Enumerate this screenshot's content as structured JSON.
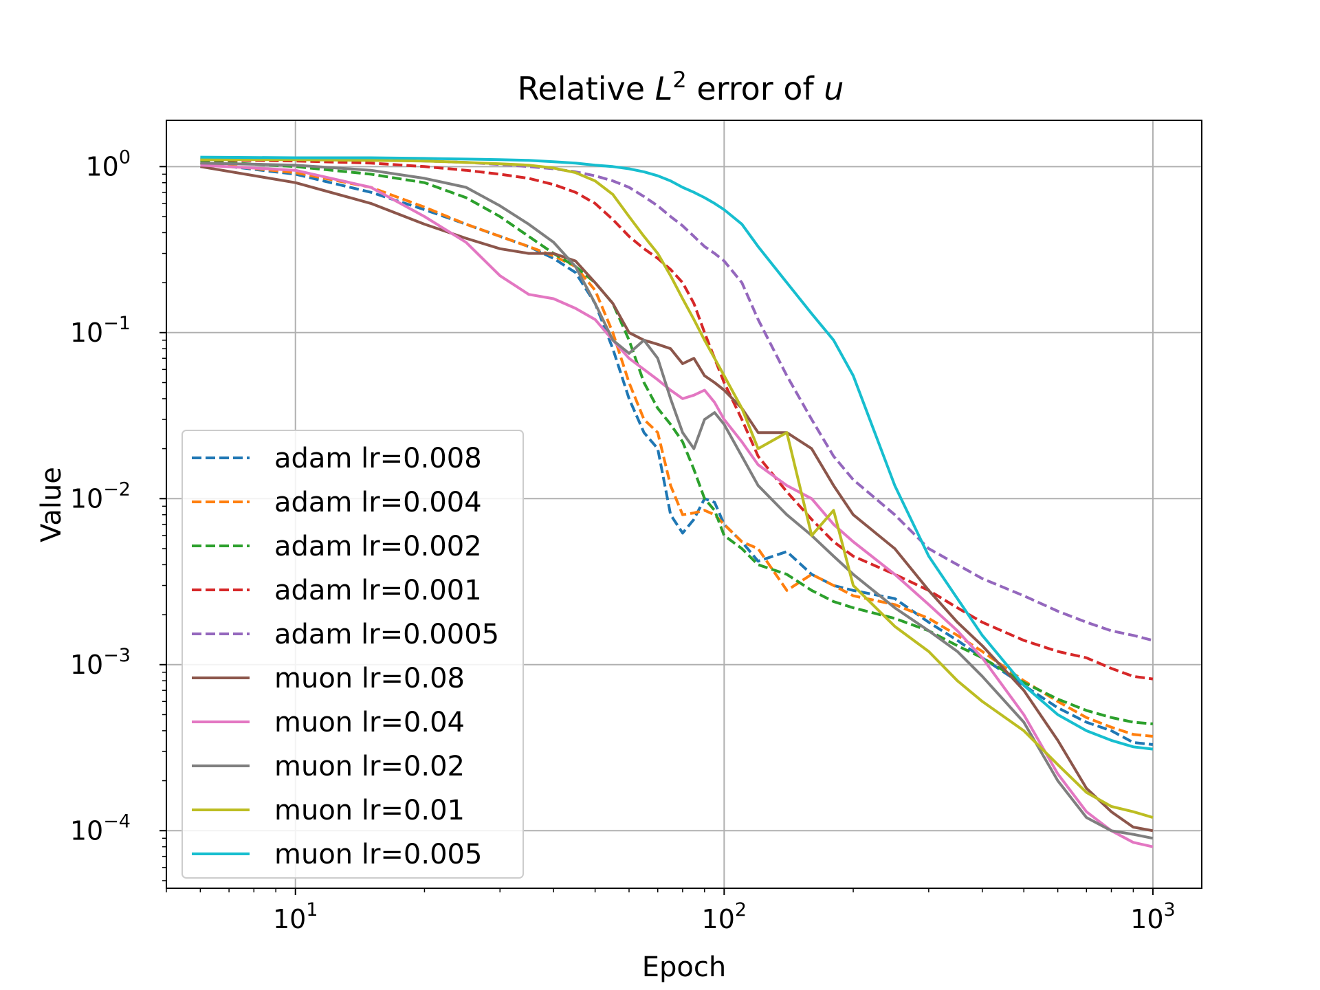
{
  "chart_data": {
    "type": "line",
    "title": "Relative L² error of u",
    "title_parts": {
      "prefix": "Relative ",
      "L": "L",
      "sup": "2",
      "mid": " error of ",
      "var": "u"
    },
    "xlabel": "Epoch",
    "ylabel": "Value",
    "x_scale": "log",
    "y_scale": "log",
    "xlim": [
      5,
      1300
    ],
    "ylim": [
      4.5e-05,
      1.9
    ],
    "x_ticks": [
      {
        "value": 10,
        "base": "10",
        "exp": "1"
      },
      {
        "value": 100,
        "base": "10",
        "exp": "2"
      },
      {
        "value": 1000,
        "base": "10",
        "exp": "3"
      }
    ],
    "y_ticks": [
      {
        "value": 1,
        "base": "10",
        "exp": "0"
      },
      {
        "value": 0.1,
        "base": "10",
        "exp": "−1"
      },
      {
        "value": 0.01,
        "base": "10",
        "exp": "−2"
      },
      {
        "value": 0.001,
        "base": "10",
        "exp": "−3"
      },
      {
        "value": 0.0001,
        "base": "10",
        "exp": "−4"
      }
    ],
    "grid": true,
    "legend_position": "lower-left",
    "series": [
      {
        "name": "adam lr=0.008",
        "color": "#1f77b4",
        "dashed": true,
        "x": [
          6,
          10,
          15,
          20,
          25,
          30,
          35,
          40,
          45,
          50,
          55,
          60,
          65,
          70,
          75,
          80,
          85,
          90,
          95,
          100,
          110,
          120,
          140,
          160,
          180,
          200,
          250,
          300,
          350,
          400,
          500,
          600,
          700,
          800,
          900,
          1000
        ],
        "y": [
          1.05,
          0.9,
          0.7,
          0.55,
          0.45,
          0.38,
          0.33,
          0.28,
          0.23,
          0.15,
          0.08,
          0.04,
          0.025,
          0.02,
          0.008,
          0.0062,
          0.0075,
          0.01,
          0.0095,
          0.007,
          0.0055,
          0.0042,
          0.0048,
          0.0035,
          0.003,
          0.0028,
          0.0025,
          0.0018,
          0.0014,
          0.0011,
          0.00075,
          0.00055,
          0.00045,
          0.0004,
          0.00034,
          0.00033
        ]
      },
      {
        "name": "adam lr=0.004",
        "color": "#ff7f0e",
        "dashed": true,
        "x": [
          6,
          10,
          15,
          20,
          25,
          30,
          35,
          40,
          45,
          50,
          55,
          60,
          65,
          70,
          75,
          80,
          85,
          90,
          95,
          100,
          110,
          120,
          140,
          160,
          180,
          200,
          250,
          300,
          350,
          400,
          500,
          600,
          700,
          800,
          900,
          1000
        ],
        "y": [
          1.05,
          0.92,
          0.75,
          0.57,
          0.45,
          0.38,
          0.33,
          0.29,
          0.25,
          0.18,
          0.1,
          0.05,
          0.03,
          0.025,
          0.012,
          0.008,
          0.0082,
          0.0085,
          0.008,
          0.007,
          0.0055,
          0.005,
          0.0028,
          0.0035,
          0.003,
          0.0026,
          0.0023,
          0.0019,
          0.0015,
          0.0012,
          0.0008,
          0.0006,
          0.00048,
          0.00042,
          0.00038,
          0.00037
        ]
      },
      {
        "name": "adam lr=0.002",
        "color": "#2ca02c",
        "dashed": true,
        "x": [
          6,
          10,
          15,
          20,
          25,
          30,
          35,
          40,
          45,
          50,
          55,
          60,
          65,
          70,
          75,
          80,
          85,
          90,
          95,
          100,
          110,
          120,
          140,
          160,
          180,
          200,
          250,
          300,
          350,
          400,
          500,
          600,
          700,
          800,
          900,
          1000
        ],
        "y": [
          1.08,
          1.0,
          0.9,
          0.8,
          0.65,
          0.5,
          0.38,
          0.3,
          0.25,
          0.2,
          0.15,
          0.09,
          0.05,
          0.035,
          0.028,
          0.022,
          0.015,
          0.01,
          0.0085,
          0.006,
          0.005,
          0.004,
          0.0035,
          0.0028,
          0.0024,
          0.0022,
          0.0019,
          0.0016,
          0.0013,
          0.0011,
          0.00078,
          0.00062,
          0.00053,
          0.00048,
          0.00045,
          0.00044
        ]
      },
      {
        "name": "adam lr=0.001",
        "color": "#d62728",
        "dashed": true,
        "x": [
          6,
          10,
          15,
          20,
          25,
          30,
          35,
          40,
          45,
          50,
          55,
          60,
          65,
          70,
          75,
          80,
          85,
          90,
          95,
          100,
          110,
          120,
          140,
          160,
          180,
          200,
          250,
          300,
          350,
          400,
          500,
          600,
          700,
          800,
          900,
          1000
        ],
        "y": [
          1.1,
          1.08,
          1.05,
          1.0,
          0.95,
          0.9,
          0.85,
          0.78,
          0.7,
          0.6,
          0.48,
          0.38,
          0.32,
          0.28,
          0.24,
          0.2,
          0.15,
          0.1,
          0.07,
          0.05,
          0.03,
          0.018,
          0.011,
          0.0075,
          0.0055,
          0.0045,
          0.0035,
          0.0028,
          0.0022,
          0.0018,
          0.0014,
          0.0012,
          0.0011,
          0.00095,
          0.00085,
          0.00082
        ]
      },
      {
        "name": "adam lr=0.0005",
        "color": "#9467bd",
        "dashed": true,
        "x": [
          6,
          10,
          15,
          20,
          25,
          30,
          35,
          40,
          45,
          50,
          55,
          60,
          65,
          70,
          75,
          80,
          85,
          90,
          95,
          100,
          110,
          120,
          140,
          160,
          180,
          200,
          250,
          300,
          350,
          400,
          500,
          600,
          700,
          800,
          900,
          1000
        ],
        "y": [
          1.12,
          1.11,
          1.1,
          1.08,
          1.06,
          1.03,
          1.0,
          0.97,
          0.93,
          0.88,
          0.82,
          0.75,
          0.66,
          0.58,
          0.5,
          0.44,
          0.38,
          0.33,
          0.3,
          0.27,
          0.2,
          0.12,
          0.055,
          0.03,
          0.018,
          0.013,
          0.008,
          0.005,
          0.004,
          0.0033,
          0.0026,
          0.0021,
          0.0018,
          0.0016,
          0.0015,
          0.0014
        ]
      },
      {
        "name": "muon lr=0.08",
        "color": "#8c564b",
        "dashed": false,
        "x": [
          6,
          10,
          15,
          20,
          25,
          30,
          35,
          40,
          45,
          50,
          55,
          60,
          65,
          70,
          75,
          80,
          85,
          90,
          95,
          100,
          110,
          120,
          140,
          160,
          180,
          200,
          250,
          300,
          350,
          400,
          500,
          600,
          700,
          800,
          900,
          1000
        ],
        "y": [
          1.0,
          0.8,
          0.6,
          0.45,
          0.37,
          0.32,
          0.3,
          0.3,
          0.27,
          0.2,
          0.15,
          0.1,
          0.09,
          0.085,
          0.08,
          0.065,
          0.07,
          0.055,
          0.05,
          0.045,
          0.035,
          0.025,
          0.025,
          0.02,
          0.012,
          0.008,
          0.005,
          0.0028,
          0.0018,
          0.0013,
          0.0007,
          0.00035,
          0.00018,
          0.00013,
          0.000105,
          0.0001
        ]
      },
      {
        "name": "muon lr=0.04",
        "color": "#e377c2",
        "dashed": false,
        "x": [
          6,
          10,
          15,
          20,
          25,
          30,
          35,
          40,
          45,
          50,
          55,
          60,
          65,
          70,
          75,
          80,
          85,
          90,
          95,
          100,
          110,
          120,
          140,
          160,
          180,
          200,
          250,
          300,
          350,
          400,
          500,
          600,
          700,
          800,
          900,
          1000
        ],
        "y": [
          1.02,
          0.95,
          0.75,
          0.5,
          0.35,
          0.22,
          0.17,
          0.16,
          0.14,
          0.12,
          0.09,
          0.07,
          0.06,
          0.052,
          0.045,
          0.04,
          0.042,
          0.045,
          0.038,
          0.03,
          0.022,
          0.016,
          0.012,
          0.01,
          0.007,
          0.0055,
          0.0035,
          0.0023,
          0.0016,
          0.0011,
          0.0005,
          0.00022,
          0.00013,
          0.0001,
          8.5e-05,
          8e-05
        ]
      },
      {
        "name": "muon lr=0.02",
        "color": "#7f7f7f",
        "dashed": false,
        "x": [
          6,
          10,
          15,
          20,
          25,
          30,
          35,
          40,
          45,
          50,
          55,
          60,
          65,
          70,
          75,
          80,
          85,
          90,
          95,
          100,
          110,
          120,
          140,
          160,
          180,
          200,
          250,
          300,
          350,
          400,
          500,
          600,
          700,
          800,
          900,
          1000
        ],
        "y": [
          1.05,
          1.02,
          0.95,
          0.85,
          0.75,
          0.58,
          0.45,
          0.35,
          0.25,
          0.15,
          0.09,
          0.075,
          0.09,
          0.07,
          0.04,
          0.025,
          0.02,
          0.03,
          0.033,
          0.028,
          0.018,
          0.012,
          0.008,
          0.006,
          0.0045,
          0.0035,
          0.0022,
          0.0016,
          0.0012,
          0.00085,
          0.00045,
          0.0002,
          0.00012,
          0.0001,
          9.5e-05,
          9e-05
        ]
      },
      {
        "name": "muon lr=0.01",
        "color": "#bcbd22",
        "dashed": false,
        "x": [
          6,
          10,
          15,
          20,
          25,
          30,
          35,
          40,
          45,
          50,
          55,
          60,
          65,
          70,
          75,
          80,
          85,
          90,
          95,
          100,
          110,
          120,
          140,
          160,
          180,
          200,
          250,
          300,
          350,
          400,
          500,
          600,
          700,
          800,
          900,
          1000
        ],
        "y": [
          1.1,
          1.1,
          1.09,
          1.08,
          1.06,
          1.04,
          1.02,
          0.98,
          0.92,
          0.82,
          0.68,
          0.5,
          0.38,
          0.3,
          0.22,
          0.16,
          0.12,
          0.09,
          0.07,
          0.055,
          0.035,
          0.02,
          0.025,
          0.006,
          0.0085,
          0.003,
          0.0017,
          0.0012,
          0.0008,
          0.0006,
          0.0004,
          0.00025,
          0.00017,
          0.00014,
          0.00013,
          0.00012
        ]
      },
      {
        "name": "muon lr=0.005",
        "color": "#17becf",
        "dashed": false,
        "x": [
          6,
          10,
          15,
          20,
          25,
          30,
          35,
          40,
          45,
          50,
          55,
          60,
          65,
          70,
          75,
          80,
          85,
          90,
          95,
          100,
          110,
          120,
          140,
          160,
          180,
          200,
          250,
          300,
          350,
          400,
          500,
          600,
          700,
          800,
          900,
          1000
        ],
        "y": [
          1.14,
          1.13,
          1.13,
          1.12,
          1.11,
          1.1,
          1.09,
          1.07,
          1.05,
          1.02,
          1.0,
          0.97,
          0.93,
          0.88,
          0.82,
          0.75,
          0.7,
          0.65,
          0.6,
          0.55,
          0.45,
          0.33,
          0.2,
          0.13,
          0.09,
          0.055,
          0.012,
          0.0045,
          0.0025,
          0.0015,
          0.00075,
          0.0005,
          0.0004,
          0.00035,
          0.00032,
          0.00031
        ]
      }
    ]
  }
}
